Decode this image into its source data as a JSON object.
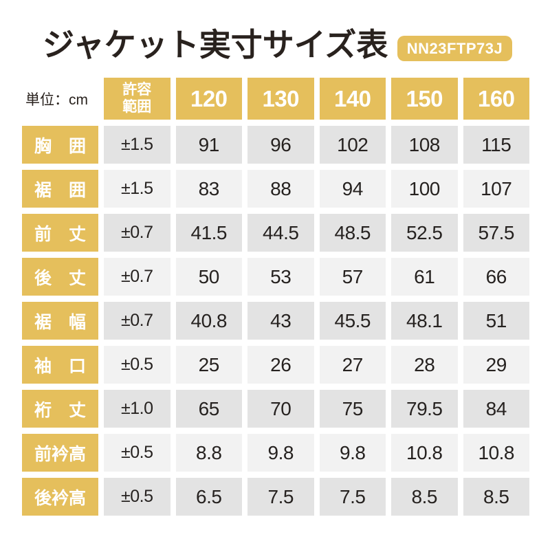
{
  "title": "ジャケット実寸サイズ表",
  "badge": {
    "code": "NN23FTP73J"
  },
  "unit_label": "単位：cm",
  "table": {
    "header": {
      "tolerance_line1": "許容",
      "tolerance_line2": "範囲",
      "sizes": [
        "120",
        "130",
        "140",
        "150",
        "160"
      ]
    },
    "rows": [
      {
        "label": "胸　囲",
        "tolerance": "±1.5",
        "values": [
          "91",
          "96",
          "102",
          "108",
          "115"
        ]
      },
      {
        "label": "裾　囲",
        "tolerance": "±1.5",
        "values": [
          "83",
          "88",
          "94",
          "100",
          "107"
        ]
      },
      {
        "label": "前　丈",
        "tolerance": "±0.7",
        "values": [
          "41.5",
          "44.5",
          "48.5",
          "52.5",
          "57.5"
        ]
      },
      {
        "label": "後　丈",
        "tolerance": "±0.7",
        "values": [
          "50",
          "53",
          "57",
          "61",
          "66"
        ]
      },
      {
        "label": "裾　幅",
        "tolerance": "±0.7",
        "values": [
          "40.8",
          "43",
          "45.5",
          "48.1",
          "51"
        ]
      },
      {
        "label": "袖　口",
        "tolerance": "±0.5",
        "values": [
          "25",
          "26",
          "27",
          "28",
          "29"
        ]
      },
      {
        "label": "裄　丈",
        "tolerance": "±1.0",
        "values": [
          "65",
          "70",
          "75",
          "79.5",
          "84"
        ]
      },
      {
        "label": "前衿高",
        "tolerance": "±0.5",
        "values": [
          "8.8",
          "9.8",
          "9.8",
          "10.8",
          "10.8"
        ]
      },
      {
        "label": "後衿高",
        "tolerance": "±0.5",
        "values": [
          "6.5",
          "7.5",
          "7.5",
          "8.5",
          "8.5"
        ]
      }
    ]
  },
  "colors": {
    "gold": "#e5bf5c",
    "row_shade_dark": "#e3e3e3",
    "row_shade_light": "#f2f2f2",
    "text_dark": "#262220",
    "header_text": "#ffffff"
  },
  "chart_data": {
    "type": "table",
    "title": "ジャケット実寸サイズ表",
    "product_code": "NN23FTP73J",
    "unit": "cm",
    "columns": [
      "許容範囲",
      "120",
      "130",
      "140",
      "150",
      "160"
    ],
    "rows": [
      {
        "measurement": "胸囲",
        "tolerance": 1.5,
        "values": [
          91,
          96,
          102,
          108,
          115
        ]
      },
      {
        "measurement": "裾囲",
        "tolerance": 1.5,
        "values": [
          83,
          88,
          94,
          100,
          107
        ]
      },
      {
        "measurement": "前丈",
        "tolerance": 0.7,
        "values": [
          41.5,
          44.5,
          48.5,
          52.5,
          57.5
        ]
      },
      {
        "measurement": "後丈",
        "tolerance": 0.7,
        "values": [
          50,
          53,
          57,
          61,
          66
        ]
      },
      {
        "measurement": "裾幅",
        "tolerance": 0.7,
        "values": [
          40.8,
          43,
          45.5,
          48.1,
          51
        ]
      },
      {
        "measurement": "袖口",
        "tolerance": 0.5,
        "values": [
          25,
          26,
          27,
          28,
          29
        ]
      },
      {
        "measurement": "裄丈",
        "tolerance": 1.0,
        "values": [
          65,
          70,
          75,
          79.5,
          84
        ]
      },
      {
        "measurement": "前衿高",
        "tolerance": 0.5,
        "values": [
          8.8,
          9.8,
          9.8,
          10.8,
          10.8
        ]
      },
      {
        "measurement": "後衿高",
        "tolerance": 0.5,
        "values": [
          6.5,
          7.5,
          7.5,
          8.5,
          8.5
        ]
      }
    ]
  }
}
